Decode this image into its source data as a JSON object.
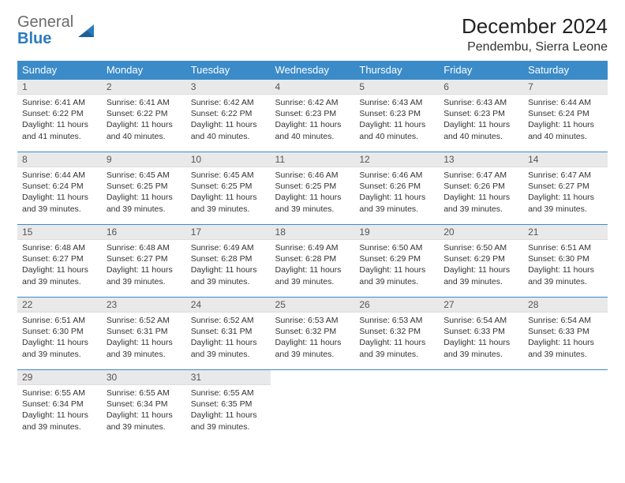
{
  "brand": {
    "part1": "General",
    "part2": "Blue"
  },
  "title": "December 2024",
  "location": "Pendembu, Sierra Leone",
  "colors": {
    "header_bg": "#3b8bc9",
    "header_text": "#ffffff",
    "daynum_bg": "#e9e9e9",
    "border": "#3b8bc9",
    "logo_gray": "#6b6b6b",
    "logo_blue": "#2b7bbf"
  },
  "weekdays": [
    "Sunday",
    "Monday",
    "Tuesday",
    "Wednesday",
    "Thursday",
    "Friday",
    "Saturday"
  ],
  "weeks": [
    [
      {
        "n": "1",
        "sr": "6:41 AM",
        "ss": "6:22 PM",
        "dl": "11 hours and 41 minutes."
      },
      {
        "n": "2",
        "sr": "6:41 AM",
        "ss": "6:22 PM",
        "dl": "11 hours and 40 minutes."
      },
      {
        "n": "3",
        "sr": "6:42 AM",
        "ss": "6:22 PM",
        "dl": "11 hours and 40 minutes."
      },
      {
        "n": "4",
        "sr": "6:42 AM",
        "ss": "6:23 PM",
        "dl": "11 hours and 40 minutes."
      },
      {
        "n": "5",
        "sr": "6:43 AM",
        "ss": "6:23 PM",
        "dl": "11 hours and 40 minutes."
      },
      {
        "n": "6",
        "sr": "6:43 AM",
        "ss": "6:23 PM",
        "dl": "11 hours and 40 minutes."
      },
      {
        "n": "7",
        "sr": "6:44 AM",
        "ss": "6:24 PM",
        "dl": "11 hours and 40 minutes."
      }
    ],
    [
      {
        "n": "8",
        "sr": "6:44 AM",
        "ss": "6:24 PM",
        "dl": "11 hours and 39 minutes."
      },
      {
        "n": "9",
        "sr": "6:45 AM",
        "ss": "6:25 PM",
        "dl": "11 hours and 39 minutes."
      },
      {
        "n": "10",
        "sr": "6:45 AM",
        "ss": "6:25 PM",
        "dl": "11 hours and 39 minutes."
      },
      {
        "n": "11",
        "sr": "6:46 AM",
        "ss": "6:25 PM",
        "dl": "11 hours and 39 minutes."
      },
      {
        "n": "12",
        "sr": "6:46 AM",
        "ss": "6:26 PM",
        "dl": "11 hours and 39 minutes."
      },
      {
        "n": "13",
        "sr": "6:47 AM",
        "ss": "6:26 PM",
        "dl": "11 hours and 39 minutes."
      },
      {
        "n": "14",
        "sr": "6:47 AM",
        "ss": "6:27 PM",
        "dl": "11 hours and 39 minutes."
      }
    ],
    [
      {
        "n": "15",
        "sr": "6:48 AM",
        "ss": "6:27 PM",
        "dl": "11 hours and 39 minutes."
      },
      {
        "n": "16",
        "sr": "6:48 AM",
        "ss": "6:27 PM",
        "dl": "11 hours and 39 minutes."
      },
      {
        "n": "17",
        "sr": "6:49 AM",
        "ss": "6:28 PM",
        "dl": "11 hours and 39 minutes."
      },
      {
        "n": "18",
        "sr": "6:49 AM",
        "ss": "6:28 PM",
        "dl": "11 hours and 39 minutes."
      },
      {
        "n": "19",
        "sr": "6:50 AM",
        "ss": "6:29 PM",
        "dl": "11 hours and 39 minutes."
      },
      {
        "n": "20",
        "sr": "6:50 AM",
        "ss": "6:29 PM",
        "dl": "11 hours and 39 minutes."
      },
      {
        "n": "21",
        "sr": "6:51 AM",
        "ss": "6:30 PM",
        "dl": "11 hours and 39 minutes."
      }
    ],
    [
      {
        "n": "22",
        "sr": "6:51 AM",
        "ss": "6:30 PM",
        "dl": "11 hours and 39 minutes."
      },
      {
        "n": "23",
        "sr": "6:52 AM",
        "ss": "6:31 PM",
        "dl": "11 hours and 39 minutes."
      },
      {
        "n": "24",
        "sr": "6:52 AM",
        "ss": "6:31 PM",
        "dl": "11 hours and 39 minutes."
      },
      {
        "n": "25",
        "sr": "6:53 AM",
        "ss": "6:32 PM",
        "dl": "11 hours and 39 minutes."
      },
      {
        "n": "26",
        "sr": "6:53 AM",
        "ss": "6:32 PM",
        "dl": "11 hours and 39 minutes."
      },
      {
        "n": "27",
        "sr": "6:54 AM",
        "ss": "6:33 PM",
        "dl": "11 hours and 39 minutes."
      },
      {
        "n": "28",
        "sr": "6:54 AM",
        "ss": "6:33 PM",
        "dl": "11 hours and 39 minutes."
      }
    ],
    [
      {
        "n": "29",
        "sr": "6:55 AM",
        "ss": "6:34 PM",
        "dl": "11 hours and 39 minutes."
      },
      {
        "n": "30",
        "sr": "6:55 AM",
        "ss": "6:34 PM",
        "dl": "11 hours and 39 minutes."
      },
      {
        "n": "31",
        "sr": "6:55 AM",
        "ss": "6:35 PM",
        "dl": "11 hours and 39 minutes."
      },
      null,
      null,
      null,
      null
    ]
  ],
  "labels": {
    "sunrise": "Sunrise:",
    "sunset": "Sunset:",
    "daylight": "Daylight:"
  }
}
